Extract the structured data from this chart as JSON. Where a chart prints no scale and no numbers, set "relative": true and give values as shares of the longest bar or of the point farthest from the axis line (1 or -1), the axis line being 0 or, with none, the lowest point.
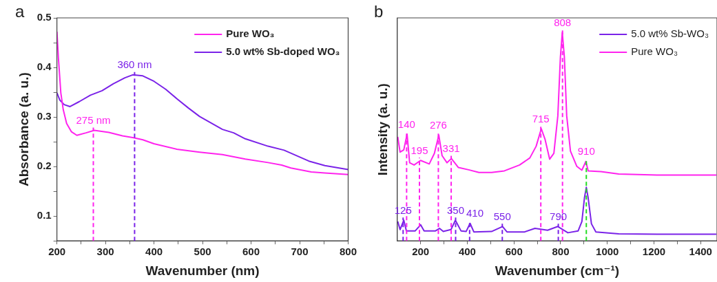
{
  "chart_data": [
    {
      "type": "line",
      "title": "a",
      "xlabel": "Wavenumber (nm)",
      "ylabel": "Absorbance (a. u.)",
      "legend": "top right",
      "xlim": [
        200,
        800
      ],
      "xticks": [
        200,
        {
          "value": 250,
          "label": null
        },
        300,
        {
          "value": 350,
          "label": null
        },
        400,
        {
          "value": 450,
          "label": null
        },
        500,
        {
          "value": 550,
          "label": null
        },
        600,
        {
          "value": 650,
          "label": null
        },
        700,
        {
          "value": 750,
          "label": null
        },
        800
      ],
      "ylim": [
        0.05,
        0.5
      ],
      "yticks": [
        {
          "value": 0.05,
          "label": null
        },
        0.1,
        {
          "value": 0.15,
          "label": null
        },
        0.2,
        {
          "value": 0.25,
          "label": null
        },
        0.3,
        {
          "value": 0.35,
          "label": null
        },
        0.4,
        {
          "value": 0.45,
          "label": null
        },
        0.5
      ],
      "series": [
        {
          "name": "Pure WO₃",
          "color": "#ff22ee",
          "x": [
            200,
            203,
            208,
            213,
            220,
            230,
            241,
            260,
            277,
            307,
            335,
            358,
            377,
            400,
            447,
            494,
            541,
            588,
            635,
            663,
            682,
            724,
            752,
            800
          ],
          "values": [
            0.472,
            0.42,
            0.349,
            0.315,
            0.287,
            0.27,
            0.263,
            0.268,
            0.273,
            0.269,
            0.262,
            0.258,
            0.254,
            0.246,
            0.235,
            0.229,
            0.224,
            0.215,
            0.208,
            0.203,
            0.197,
            0.189,
            0.187,
            0.184
          ]
        },
        {
          "name": "5.0 wt% Sb-doped WO₃",
          "color": "#7a22e8",
          "x": [
            200,
            206,
            215,
            227,
            246,
            269,
            293,
            316,
            340,
            356,
            377,
            400,
            424,
            447,
            471,
            494,
            541,
            564,
            588,
            635,
            668,
            719,
            752,
            800
          ],
          "values": [
            0.349,
            0.334,
            0.325,
            0.321,
            0.331,
            0.344,
            0.353,
            0.367,
            0.379,
            0.385,
            0.383,
            0.372,
            0.356,
            0.337,
            0.318,
            0.301,
            0.275,
            0.268,
            0.256,
            0.241,
            0.233,
            0.211,
            0.202,
            0.194
          ]
        }
      ],
      "ref_lines": [
        {
          "axis": "x",
          "value": 275,
          "color": "#ff22ee",
          "line_style": "dashed"
        },
        {
          "axis": "x",
          "value": 360,
          "color": "#7a22e8",
          "line_style": "dashed"
        }
      ],
      "annotations": [
        {
          "text": "275 nm",
          "x": 275,
          "y": 0.273
        },
        {
          "text": "360 nm",
          "x": 360,
          "y": 0.385
        }
      ]
    },
    {
      "type": "line",
      "title": "b",
      "xlabel": "Wavenumber (cm⁻¹)",
      "ylabel": "Intensity (a. u.)",
      "legend": "top right",
      "relative": true,
      "xlim": [
        100,
        1470
      ],
      "xticks": [
        200,
        {
          "value": 300,
          "label": null
        },
        400,
        {
          "value": 500,
          "label": null
        },
        600,
        {
          "value": 700,
          "label": null
        },
        800,
        {
          "value": 900,
          "label": null
        },
        1000,
        {
          "value": 1100,
          "label": null
        },
        1200,
        {
          "value": 1300,
          "label": null
        },
        1400
      ],
      "series": [
        {
          "name": "5.0 wt% Sb-WO₃",
          "color": "#7a22e8",
          "x": [
            102,
            112,
            128,
            139,
            177,
            200,
            215,
            264,
            281,
            297,
            330,
            349,
            373,
            395,
            412,
            428,
            504,
            551,
            570,
            646,
            690,
            744,
            788,
            831,
            875,
            891,
            902,
            910,
            918,
            932,
            951,
            1049,
            1213,
            1467
          ],
          "values": [
            0.093,
            0.054,
            0.099,
            0.048,
            0.048,
            0.077,
            0.048,
            0.048,
            0.06,
            0.045,
            0.054,
            0.099,
            0.048,
            0.045,
            0.084,
            0.043,
            0.045,
            0.069,
            0.043,
            0.043,
            0.06,
            0.051,
            0.069,
            0.039,
            0.048,
            0.093,
            0.206,
            0.257,
            0.206,
            0.082,
            0.043,
            0.034,
            0.032,
            0.032
          ]
        },
        {
          "name": "Pure WO₃",
          "color": "#ff22ee",
          "x": [
            102,
            112,
            128,
            142,
            153,
            172,
            200,
            237,
            259,
            278,
            292,
            313,
            332,
            362,
            406,
            450,
            504,
            559,
            624,
            668,
            695,
            717,
            733,
            753,
            771,
            788,
            799,
            807,
            816,
            826,
            842,
            869,
            891,
            908,
            918,
            973,
            1049,
            1213,
            1467
          ],
          "values": [
            0.499,
            0.426,
            0.437,
            0.512,
            0.375,
            0.364,
            0.386,
            0.369,
            0.42,
            0.507,
            0.409,
            0.375,
            0.395,
            0.352,
            0.341,
            0.328,
            0.328,
            0.336,
            0.364,
            0.398,
            0.454,
            0.538,
            0.488,
            0.392,
            0.42,
            0.6,
            0.882,
            1.0,
            0.882,
            0.6,
            0.431,
            0.358,
            0.339,
            0.381,
            0.336,
            0.332,
            0.321,
            0.316,
            0.316
          ]
        }
      ],
      "ref_lines": [
        {
          "axis": "x",
          "value": 140,
          "color": "#ff22ee",
          "line_style": "dashed"
        },
        {
          "axis": "x",
          "value": 195,
          "color": "#ff22ee",
          "line_style": "dashed"
        },
        {
          "axis": "x",
          "value": 276,
          "color": "#ff22ee",
          "line_style": "dashed"
        },
        {
          "axis": "x",
          "value": 331,
          "color": "#ff22ee",
          "line_style": "dashed"
        },
        {
          "axis": "x",
          "value": 715,
          "color": "#ff22ee",
          "line_style": "dashed"
        },
        {
          "axis": "x",
          "value": 808,
          "color": "#ff22ee",
          "line_style": "dashed"
        },
        {
          "axis": "x",
          "value": 910,
          "color": "#22dd22",
          "line_style": "dashed"
        },
        {
          "axis": "x",
          "value": 125,
          "color": "#7a22e8",
          "line_style": "dashed"
        },
        {
          "axis": "x",
          "value": 350,
          "color": "#7a22e8",
          "line_style": "dashed"
        },
        {
          "axis": "x",
          "value": 410,
          "color": "#7a22e8",
          "line_style": "dashed"
        },
        {
          "axis": "x",
          "value": 550,
          "color": "#7a22e8",
          "line_style": "dashed"
        },
        {
          "axis": "x",
          "value": 790,
          "color": "#7a22e8",
          "line_style": "dashed"
        }
      ],
      "annotations": [
        {
          "text": "140",
          "x": 140,
          "y": 0.512
        },
        {
          "text": "195",
          "x": 195,
          "y": 0.386
        },
        {
          "text": "276",
          "x": 276,
          "y": 0.507
        },
        {
          "text": "331",
          "x": 331,
          "y": 0.395
        },
        {
          "text": "715",
          "x": 715,
          "y": 0.538
        },
        {
          "text": "808",
          "x": 808,
          "y": 1.0
        },
        {
          "text": "910",
          "x": 910,
          "y": 0.381
        },
        {
          "text": "125",
          "x": 125,
          "y": 0.099
        },
        {
          "text": "350",
          "x": 350,
          "y": 0.099
        },
        {
          "text": "410",
          "x": 410,
          "y": 0.084
        },
        {
          "text": "550",
          "x": 550,
          "y": 0.069
        },
        {
          "text": "790",
          "x": 790,
          "y": 0.069
        }
      ]
    }
  ]
}
